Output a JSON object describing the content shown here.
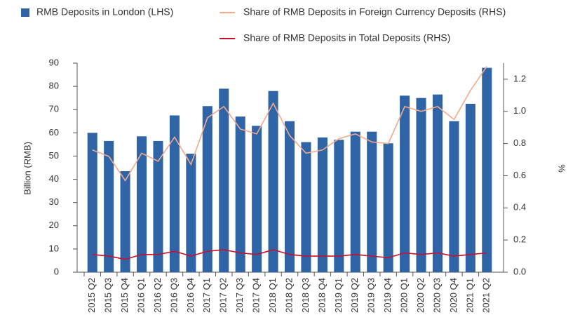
{
  "chart_data": {
    "type": "bar_line",
    "ylabel": "Billion (RMB)",
    "y2label": "%",
    "categories": [
      "2015 Q2",
      "2015 Q3",
      "2015 Q4",
      "2016 Q1",
      "2016 Q2",
      "2016 Q3",
      "2016 Q4",
      "2017 Q1",
      "2017 Q2",
      "2017 Q3",
      "2017 Q4",
      "2018 Q1",
      "2018 Q2",
      "2018 Q3",
      "2018 Q4",
      "2019 Q1",
      "2019 Q2",
      "2019 Q3",
      "2019 Q4",
      "2020 Q1",
      "2020 Q2",
      "2020 Q3",
      "2020 Q4",
      "2021 Q1",
      "2021 Q2"
    ],
    "series": [
      {
        "name": "RMB Deposits in London (LHS)",
        "type": "bar",
        "color": "#2f65a7",
        "values": [
          60,
          56.5,
          43.5,
          58.5,
          56.5,
          67.5,
          51,
          71.5,
          79,
          67,
          63,
          78,
          65,
          56,
          58,
          57,
          60.5,
          60.5,
          55.5,
          76,
          75,
          76.5,
          65,
          72.5,
          88
        ]
      },
      {
        "name": "Share of RMB Deposits in Foreign Currency Deposits (RHS)",
        "type": "line",
        "axis": "y2",
        "color": "#f4a98a",
        "values": [
          0.76,
          0.72,
          0.57,
          0.74,
          0.69,
          0.84,
          0.67,
          0.96,
          1.03,
          0.89,
          0.86,
          1.05,
          0.85,
          0.74,
          0.76,
          0.83,
          0.86,
          0.81,
          0.8,
          1.03,
          1.0,
          1.03,
          0.95,
          1.13,
          1.28
        ]
      },
      {
        "name": "Share of RMB Deposits in Total Deposits (RHS)",
        "type": "line",
        "axis": "y2",
        "color": "#c8102e",
        "values": [
          0.11,
          0.1,
          0.08,
          0.11,
          0.11,
          0.13,
          0.1,
          0.13,
          0.14,
          0.12,
          0.11,
          0.14,
          0.11,
          0.1,
          0.1,
          0.1,
          0.11,
          0.1,
          0.09,
          0.12,
          0.11,
          0.12,
          0.1,
          0.11,
          0.12
        ]
      }
    ],
    "ylim": [
      0,
      90
    ],
    "yticks": [
      0,
      10,
      20,
      30,
      40,
      50,
      60,
      70,
      80,
      90
    ],
    "y2lim": [
      0,
      1.3
    ],
    "y2ticks": [
      {
        "value": 0,
        "label": "0.0"
      },
      0.2,
      0.4,
      0.6,
      0.8,
      {
        "value": 1,
        "label": "1.0"
      },
      1.2
    ]
  }
}
